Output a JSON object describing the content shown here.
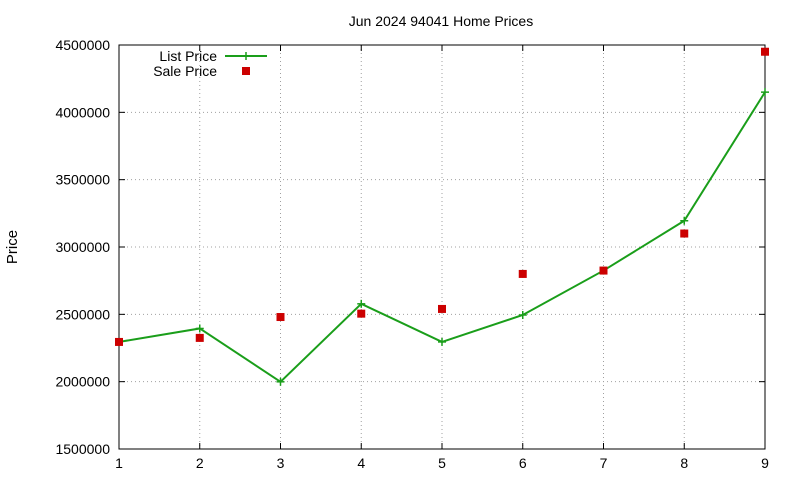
{
  "chart_data": {
    "type": "line",
    "title": "Jun 2024 94041 Home Prices",
    "xlabel": "",
    "ylabel": "Price",
    "x": [
      1,
      2,
      3,
      4,
      5,
      6,
      7,
      8,
      9
    ],
    "xlim": [
      1,
      9
    ],
    "ylim": [
      1500000,
      4500000
    ],
    "y_ticks": [
      1500000,
      2000000,
      2500000,
      3000000,
      3500000,
      4000000,
      4500000
    ],
    "grid": true,
    "legend_position": "top-left",
    "series": [
      {
        "name": "List Price",
        "style": "line-with-plus-markers",
        "color": "#1a9e1a",
        "values": [
          2295000,
          2395000,
          1999000,
          2578000,
          2295000,
          2495000,
          2825000,
          3195000,
          4150000
        ]
      },
      {
        "name": "Sale Price",
        "style": "square-markers",
        "color": "#cc0000",
        "values": [
          2295000,
          2325000,
          2480000,
          2505000,
          2540000,
          2800000,
          2825000,
          3100000,
          4450000
        ]
      }
    ]
  }
}
